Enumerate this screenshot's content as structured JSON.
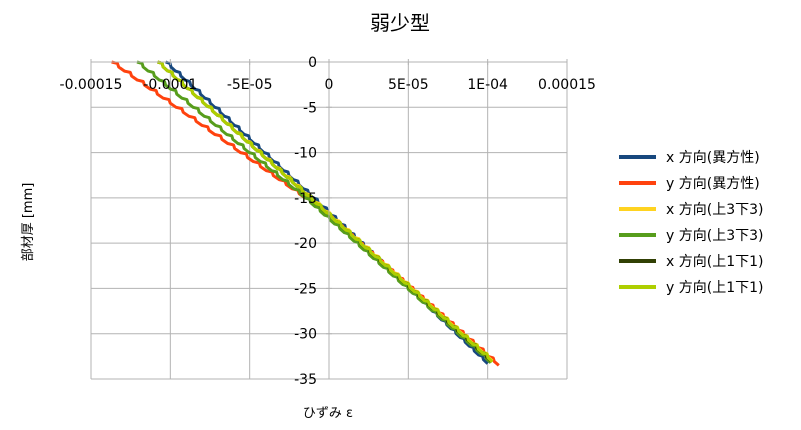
{
  "chart_data": {
    "type": "line",
    "title": "弱少型",
    "xlabel": "ひずみ ε",
    "ylabel": "部材厚 [mm]",
    "xlim": [
      -0.00015,
      0.00015
    ],
    "ylim": [
      -35,
      0
    ],
    "x_ticks": [
      -0.00015,
      -0.0001,
      -5e-05,
      0,
      5e-05,
      0.0001,
      0.00015
    ],
    "x_tick_labels": [
      "-0.00015",
      "-0.0001",
      "-5E-05",
      "0",
      "5E-05",
      "1E-04",
      "0.00015"
    ],
    "y_ticks": [
      0,
      -5,
      -10,
      -15,
      -20,
      -25,
      -30,
      -35
    ],
    "y_tick_labels": [
      "0",
      "-5",
      "-10",
      "-15",
      "-20",
      "-25",
      "-30",
      "-35"
    ],
    "grid": "major",
    "legend_position": "right",
    "series": [
      {
        "name": "x 方向(異方性)",
        "color": "#17487e",
        "x": [
          -0.000103,
          -1e-05,
          0.0001
        ],
        "y": [
          0,
          -15,
          -33.3
        ]
      },
      {
        "name": "y 方向(異方性)",
        "color": "#ff420e",
        "x": [
          -0.000137,
          -7e-06,
          0.000107
        ],
        "y": [
          0,
          -16,
          -33.5
        ]
      },
      {
        "name": "x 方向(上3下3)",
        "color": "#ffd320",
        "x": [
          -0.000108,
          -1.5e-05,
          0.000103
        ],
        "y": [
          0,
          -14.5,
          -33
        ]
      },
      {
        "name": "y 方向(上3下3)",
        "color": "#579d1c",
        "x": [
          -0.000121,
          -1.5e-05,
          0.000102
        ],
        "y": [
          0,
          -15,
          -33.2
        ]
      },
      {
        "name": "x 方向(上1下1)",
        "color": "#314004",
        "x": [
          -0.000108,
          -1.4e-05,
          0.000102
        ],
        "y": [
          0,
          -14.7,
          -33
        ]
      },
      {
        "name": "y 方向(上1下1)",
        "color": "#aecf00",
        "x": [
          -0.000108,
          -1.4e-05,
          0.000103
        ],
        "y": [
          0,
          -14.7,
          -33.1
        ]
      }
    ]
  }
}
